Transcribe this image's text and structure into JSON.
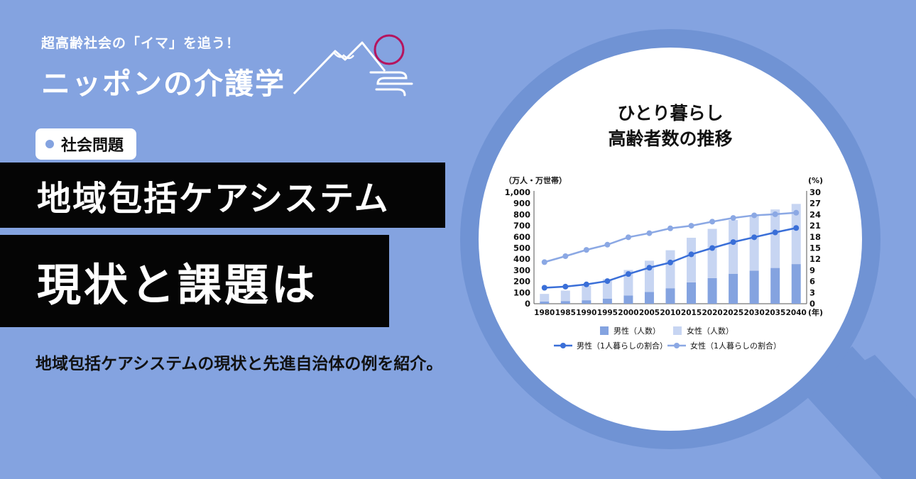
{
  "brand": {
    "tagline": "超高齢社会の「イマ」を追う！",
    "title": "ニッポンの介護学",
    "logo_icon": "mountain-sun-icon"
  },
  "category": {
    "label": "社会問題",
    "icon": "dot-icon"
  },
  "headline": {
    "line1": "地域包括ケアシステム",
    "line2": "現状と課題は"
  },
  "description": "地域包括ケアシステムの現状と先進自治体の例を紹介。",
  "magnifier_icon": "magnifying-glass-icon",
  "colors": {
    "background": "#84a3e0",
    "ring": "#7093d4",
    "bar_male": "#84a3e0",
    "bar_female": "#c7d5f2",
    "line_male": "#3a6fd8",
    "line_female": "#8ba8e4"
  },
  "chart_data": {
    "type": "bar+line",
    "title_line1": "ひとり暮らし",
    "title_line2": "高齢者数の推移",
    "ylabel_left": "（万人・万世帯）",
    "ylabel_right": "(%)",
    "xlabel": "(年)",
    "categories": [
      "1980",
      "1985",
      "1990",
      "1995",
      "2000",
      "2005",
      "2010",
      "2015",
      "2020",
      "2025",
      "2030",
      "2035",
      "2040"
    ],
    "y_left": {
      "min": 0,
      "max": 1000,
      "ticks": [
        0,
        100,
        200,
        300,
        400,
        500,
        600,
        700,
        800,
        900,
        1000
      ],
      "tick_labels": [
        "0",
        "100",
        "200",
        "300",
        "400",
        "500",
        "600",
        "700",
        "800",
        "900",
        "1,000"
      ]
    },
    "y_right": {
      "min": 0,
      "max": 30,
      "ticks": [
        0,
        3,
        6,
        9,
        12,
        15,
        18,
        21,
        24,
        27,
        30
      ]
    },
    "bar_series": [
      {
        "name": "男性（人数）",
        "values": [
          19,
          24,
          31,
          46,
          74,
          105,
          139,
          192,
          230,
          269,
          296,
          321,
          356
        ]
      },
      {
        "name": "女性（人数）",
        "values": [
          69,
          94,
          131,
          174,
          229,
          281,
          341,
          400,
          442,
          482,
          500,
          525,
          540
        ]
      }
    ],
    "line_series": [
      {
        "name": "男性（1人暮らしの割合）",
        "values": [
          4.3,
          4.6,
          5.2,
          6.1,
          8.0,
          9.7,
          11.1,
          13.3,
          15.0,
          16.6,
          17.9,
          19.2,
          20.4
        ]
      },
      {
        "name": "女性（1人暮らしの割合）",
        "values": [
          11.2,
          12.8,
          14.5,
          15.9,
          17.9,
          19.0,
          20.3,
          21.0,
          22.1,
          23.1,
          23.8,
          24.1,
          24.5
        ]
      }
    ],
    "legend_position": "bottom",
    "grid": false
  }
}
